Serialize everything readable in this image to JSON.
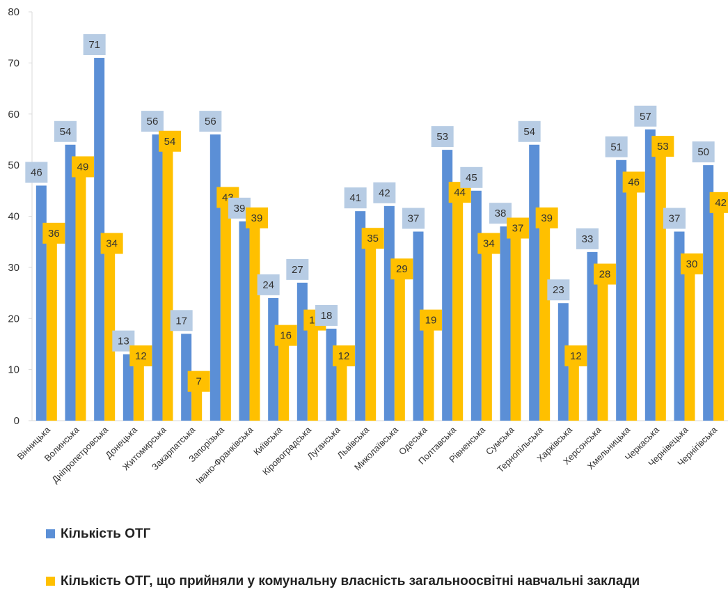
{
  "chart_data": {
    "type": "bar",
    "categories": [
      "Вінницька",
      "Волинська",
      "Дніпропетровська",
      "Донецька",
      "Житомирська",
      "Закарпатська",
      "Запорізька",
      "Івано-Франківська",
      "Київська",
      "Кіровоградська",
      "Луганська",
      "Львівська",
      "Миколаївська",
      "Одеська",
      "Полтавська",
      "Рівненська",
      "Сумська",
      "Тернопільська",
      "Харківська",
      "Херсонська",
      "Хмельницька",
      "Черкаська",
      "Чернівецька",
      "Чернігівська"
    ],
    "series": [
      {
        "name": "Кількість ОТГ",
        "color": "#5B8FD6",
        "label_bg": "#B7CCE4",
        "values": [
          46,
          54,
          71,
          13,
          56,
          17,
          56,
          39,
          24,
          27,
          18,
          41,
          42,
          37,
          53,
          45,
          38,
          54,
          23,
          33,
          51,
          57,
          37,
          50
        ]
      },
      {
        "name": "Кількість ОТГ,  що прийняли у комунальну власність загальноосвітні навчальні заклади",
        "color": "#FFC000",
        "label_bg": "#FFC000",
        "values": [
          36,
          49,
          34,
          12,
          54,
          7,
          43,
          39,
          16,
          19,
          12,
          35,
          29,
          19,
          44,
          34,
          37,
          39,
          12,
          28,
          46,
          53,
          30,
          42
        ]
      }
    ],
    "ylim": [
      0,
      80
    ],
    "yticks": [
      0,
      10,
      20,
      30,
      40,
      50,
      60,
      70,
      80
    ],
    "grid": false,
    "legend_position": "bottom"
  }
}
